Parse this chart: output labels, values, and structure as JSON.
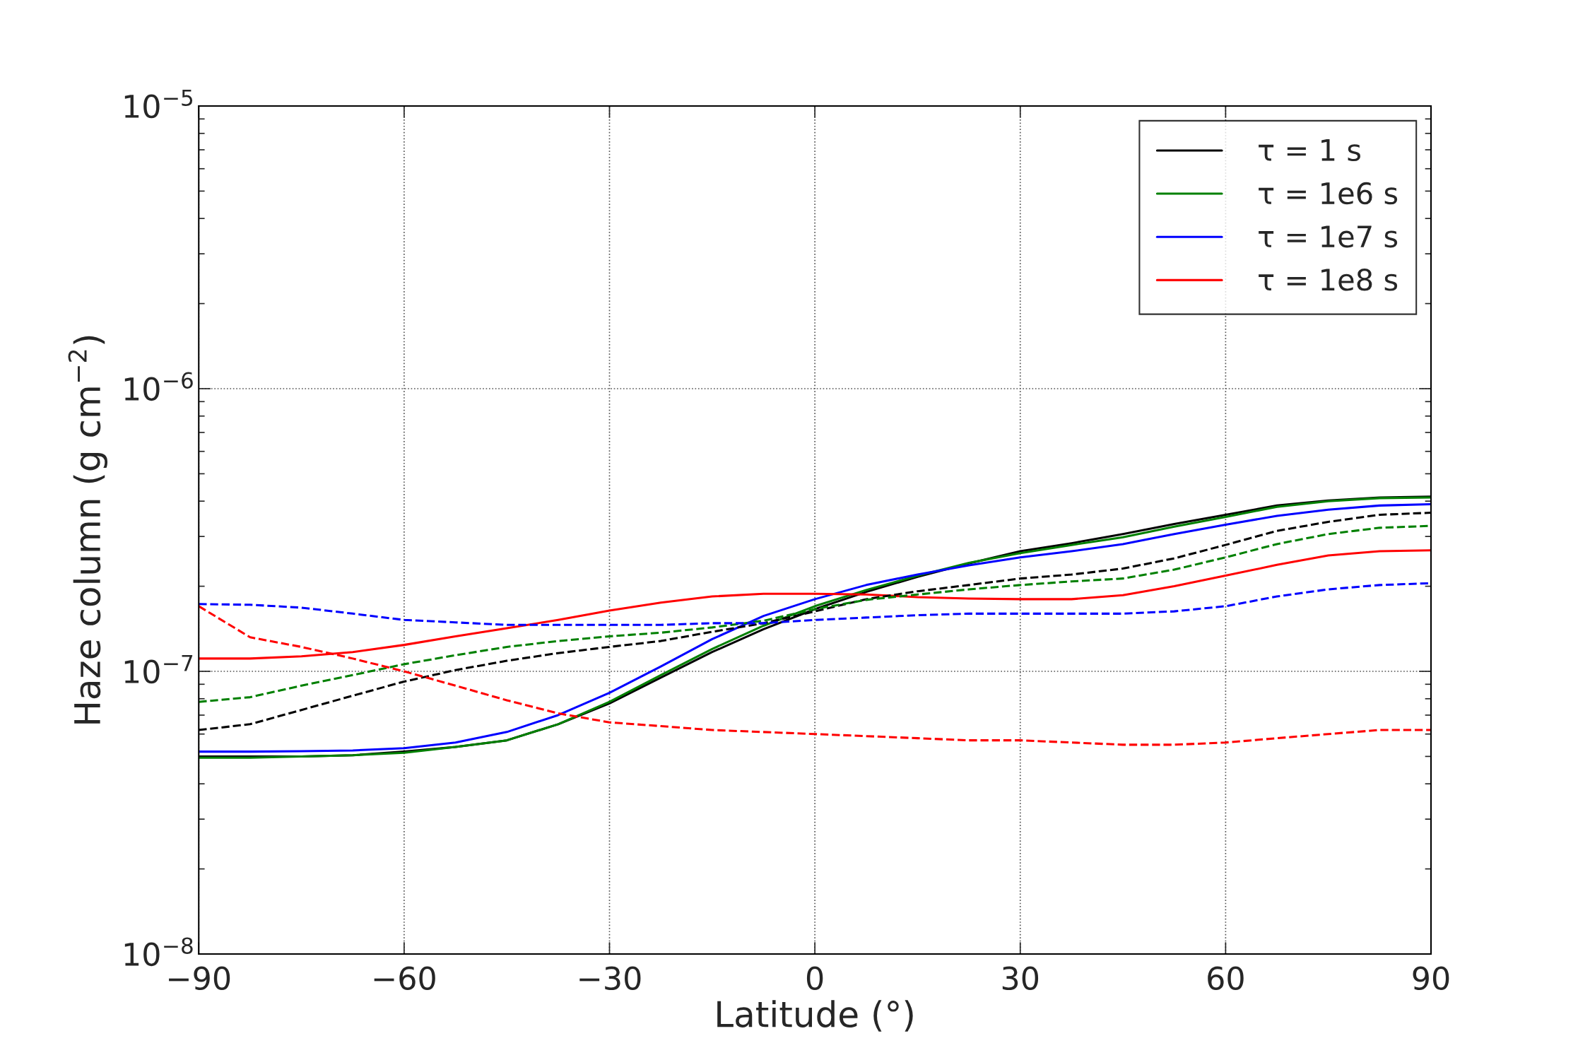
{
  "chart_data": {
    "type": "line",
    "xlabel": "Latitude (°)",
    "ylabel": "Haze column (g cm$^{−2}$)",
    "x": [
      -90,
      -82.5,
      -75,
      -67.5,
      -60,
      -52.5,
      -45,
      -37.5,
      -30,
      -22.5,
      -15,
      -7.5,
      0,
      7.5,
      15,
      22.5,
      30,
      37.5,
      45,
      52.5,
      60,
      67.5,
      75,
      82.5,
      90
    ],
    "series": [
      {
        "name": "τ = 1 s",
        "color": "#000000",
        "line_style": "solid",
        "values": [
          5e-08,
          5e-08,
          5e-08,
          5.05e-08,
          5.2e-08,
          5.4e-08,
          5.7e-08,
          6.5e-08,
          7.7e-08,
          9.5e-08,
          1.17e-07,
          1.41e-07,
          1.66e-07,
          1.91e-07,
          2.16e-07,
          2.41e-07,
          2.66e-07,
          2.84e-07,
          3.06e-07,
          3.32e-07,
          3.58e-07,
          3.86e-07,
          4.02e-07,
          4.12e-07,
          4.15e-07
        ]
      },
      {
        "name": "τ = 1e6 s",
        "color": "#008000",
        "line_style": "solid",
        "values": [
          4.95e-08,
          4.95e-08,
          5e-08,
          5.05e-08,
          5.15e-08,
          5.4e-08,
          5.7e-08,
          6.5e-08,
          7.8e-08,
          9.7e-08,
          1.2e-07,
          1.45e-07,
          1.7e-07,
          1.94e-07,
          2.18e-07,
          2.42e-07,
          2.62e-07,
          2.8e-07,
          2.98e-07,
          3.25e-07,
          3.52e-07,
          3.82e-07,
          4e-07,
          4.1e-07,
          4.12e-07
        ]
      },
      {
        "name": "τ = 1e7 s",
        "color": "#0000ff",
        "line_style": "solid",
        "values": [
          5.2e-08,
          5.2e-08,
          5.22e-08,
          5.25e-08,
          5.35e-08,
          5.6e-08,
          6.1e-08,
          7e-08,
          8.4e-08,
          1.04e-07,
          1.3e-07,
          1.57e-07,
          1.8e-07,
          2.02e-07,
          2.2e-07,
          2.37e-07,
          2.53e-07,
          2.66e-07,
          2.82e-07,
          3.06e-07,
          3.3e-07,
          3.55e-07,
          3.73e-07,
          3.86e-07,
          3.9e-07
        ]
      },
      {
        "name": "τ = 1e8 s",
        "color": "#ff0000",
        "line_style": "solid",
        "values": [
          1.11e-07,
          1.11e-07,
          1.13e-07,
          1.17e-07,
          1.24e-07,
          1.33e-07,
          1.42e-07,
          1.52e-07,
          1.64e-07,
          1.75e-07,
          1.84e-07,
          1.88e-07,
          1.88e-07,
          1.87e-07,
          1.83e-07,
          1.81e-07,
          1.8e-07,
          1.8e-07,
          1.86e-07,
          2e-07,
          2.18e-07,
          2.38e-07,
          2.57e-07,
          2.66e-07,
          2.68e-07
        ]
      },
      {
        "color": "#000000",
        "line_style": "dashed",
        "values": [
          6.2e-08,
          6.5e-08,
          7.3e-08,
          8.2e-08,
          9.2e-08,
          1.01e-07,
          1.09e-07,
          1.16e-07,
          1.22e-07,
          1.28e-07,
          1.38e-07,
          1.48e-07,
          1.63e-07,
          1.8e-07,
          1.92e-07,
          2.02e-07,
          2.13e-07,
          2.2e-07,
          2.31e-07,
          2.51e-07,
          2.8e-07,
          3.14e-07,
          3.38e-07,
          3.58e-07,
          3.64e-07
        ]
      },
      {
        "color": "#008000",
        "line_style": "dashed",
        "values": [
          7.8e-08,
          8.1e-08,
          8.9e-08,
          9.7e-08,
          1.06e-07,
          1.14e-07,
          1.22e-07,
          1.28e-07,
          1.33e-07,
          1.37e-07,
          1.43e-07,
          1.51e-07,
          1.66e-07,
          1.79e-07,
          1.87e-07,
          1.95e-07,
          2.02e-07,
          2.08e-07,
          2.13e-07,
          2.29e-07,
          2.53e-07,
          2.82e-07,
          3.06e-07,
          3.22e-07,
          3.27e-07
        ]
      },
      {
        "color": "#0000ff",
        "line_style": "dashed",
        "values": [
          1.73e-07,
          1.72e-07,
          1.68e-07,
          1.6e-07,
          1.52e-07,
          1.49e-07,
          1.46e-07,
          1.46e-07,
          1.46e-07,
          1.46e-07,
          1.48e-07,
          1.48e-07,
          1.52e-07,
          1.55e-07,
          1.58e-07,
          1.6e-07,
          1.6e-07,
          1.6e-07,
          1.6e-07,
          1.63e-07,
          1.7e-07,
          1.84e-07,
          1.95e-07,
          2.02e-07,
          2.05e-07
        ]
      },
      {
        "color": "#ff0000",
        "line_style": "dashed",
        "values": [
          1.7e-07,
          1.32e-07,
          1.22e-07,
          1.11e-07,
          1e-07,
          8.9e-08,
          7.9e-08,
          7.1e-08,
          6.6e-08,
          6.4e-08,
          6.2e-08,
          6.1e-08,
          6e-08,
          5.9e-08,
          5.8e-08,
          5.7e-08,
          5.7e-08,
          5.6e-08,
          5.5e-08,
          5.5e-08,
          5.6e-08,
          5.8e-08,
          6e-08,
          6.2e-08,
          6.2e-08
        ]
      }
    ],
    "log": "y",
    "xlim": [
      -90,
      90
    ],
    "ylim": [
      1e-08,
      1e-05
    ],
    "xticks": [
      -90,
      -60,
      -30,
      0,
      30,
      60,
      90
    ],
    "yticks": [
      {
        "value": 1e-08,
        "label": "10$^{−8}$"
      },
      {
        "value": 1e-07,
        "label": "10$^{−7}$"
      },
      {
        "value": 1e-06,
        "label": "10$^{−6}$"
      },
      {
        "value": 1e-05,
        "label": "10$^{−5}$"
      }
    ],
    "grid": true,
    "legend": "top right",
    "marker": "none"
  }
}
